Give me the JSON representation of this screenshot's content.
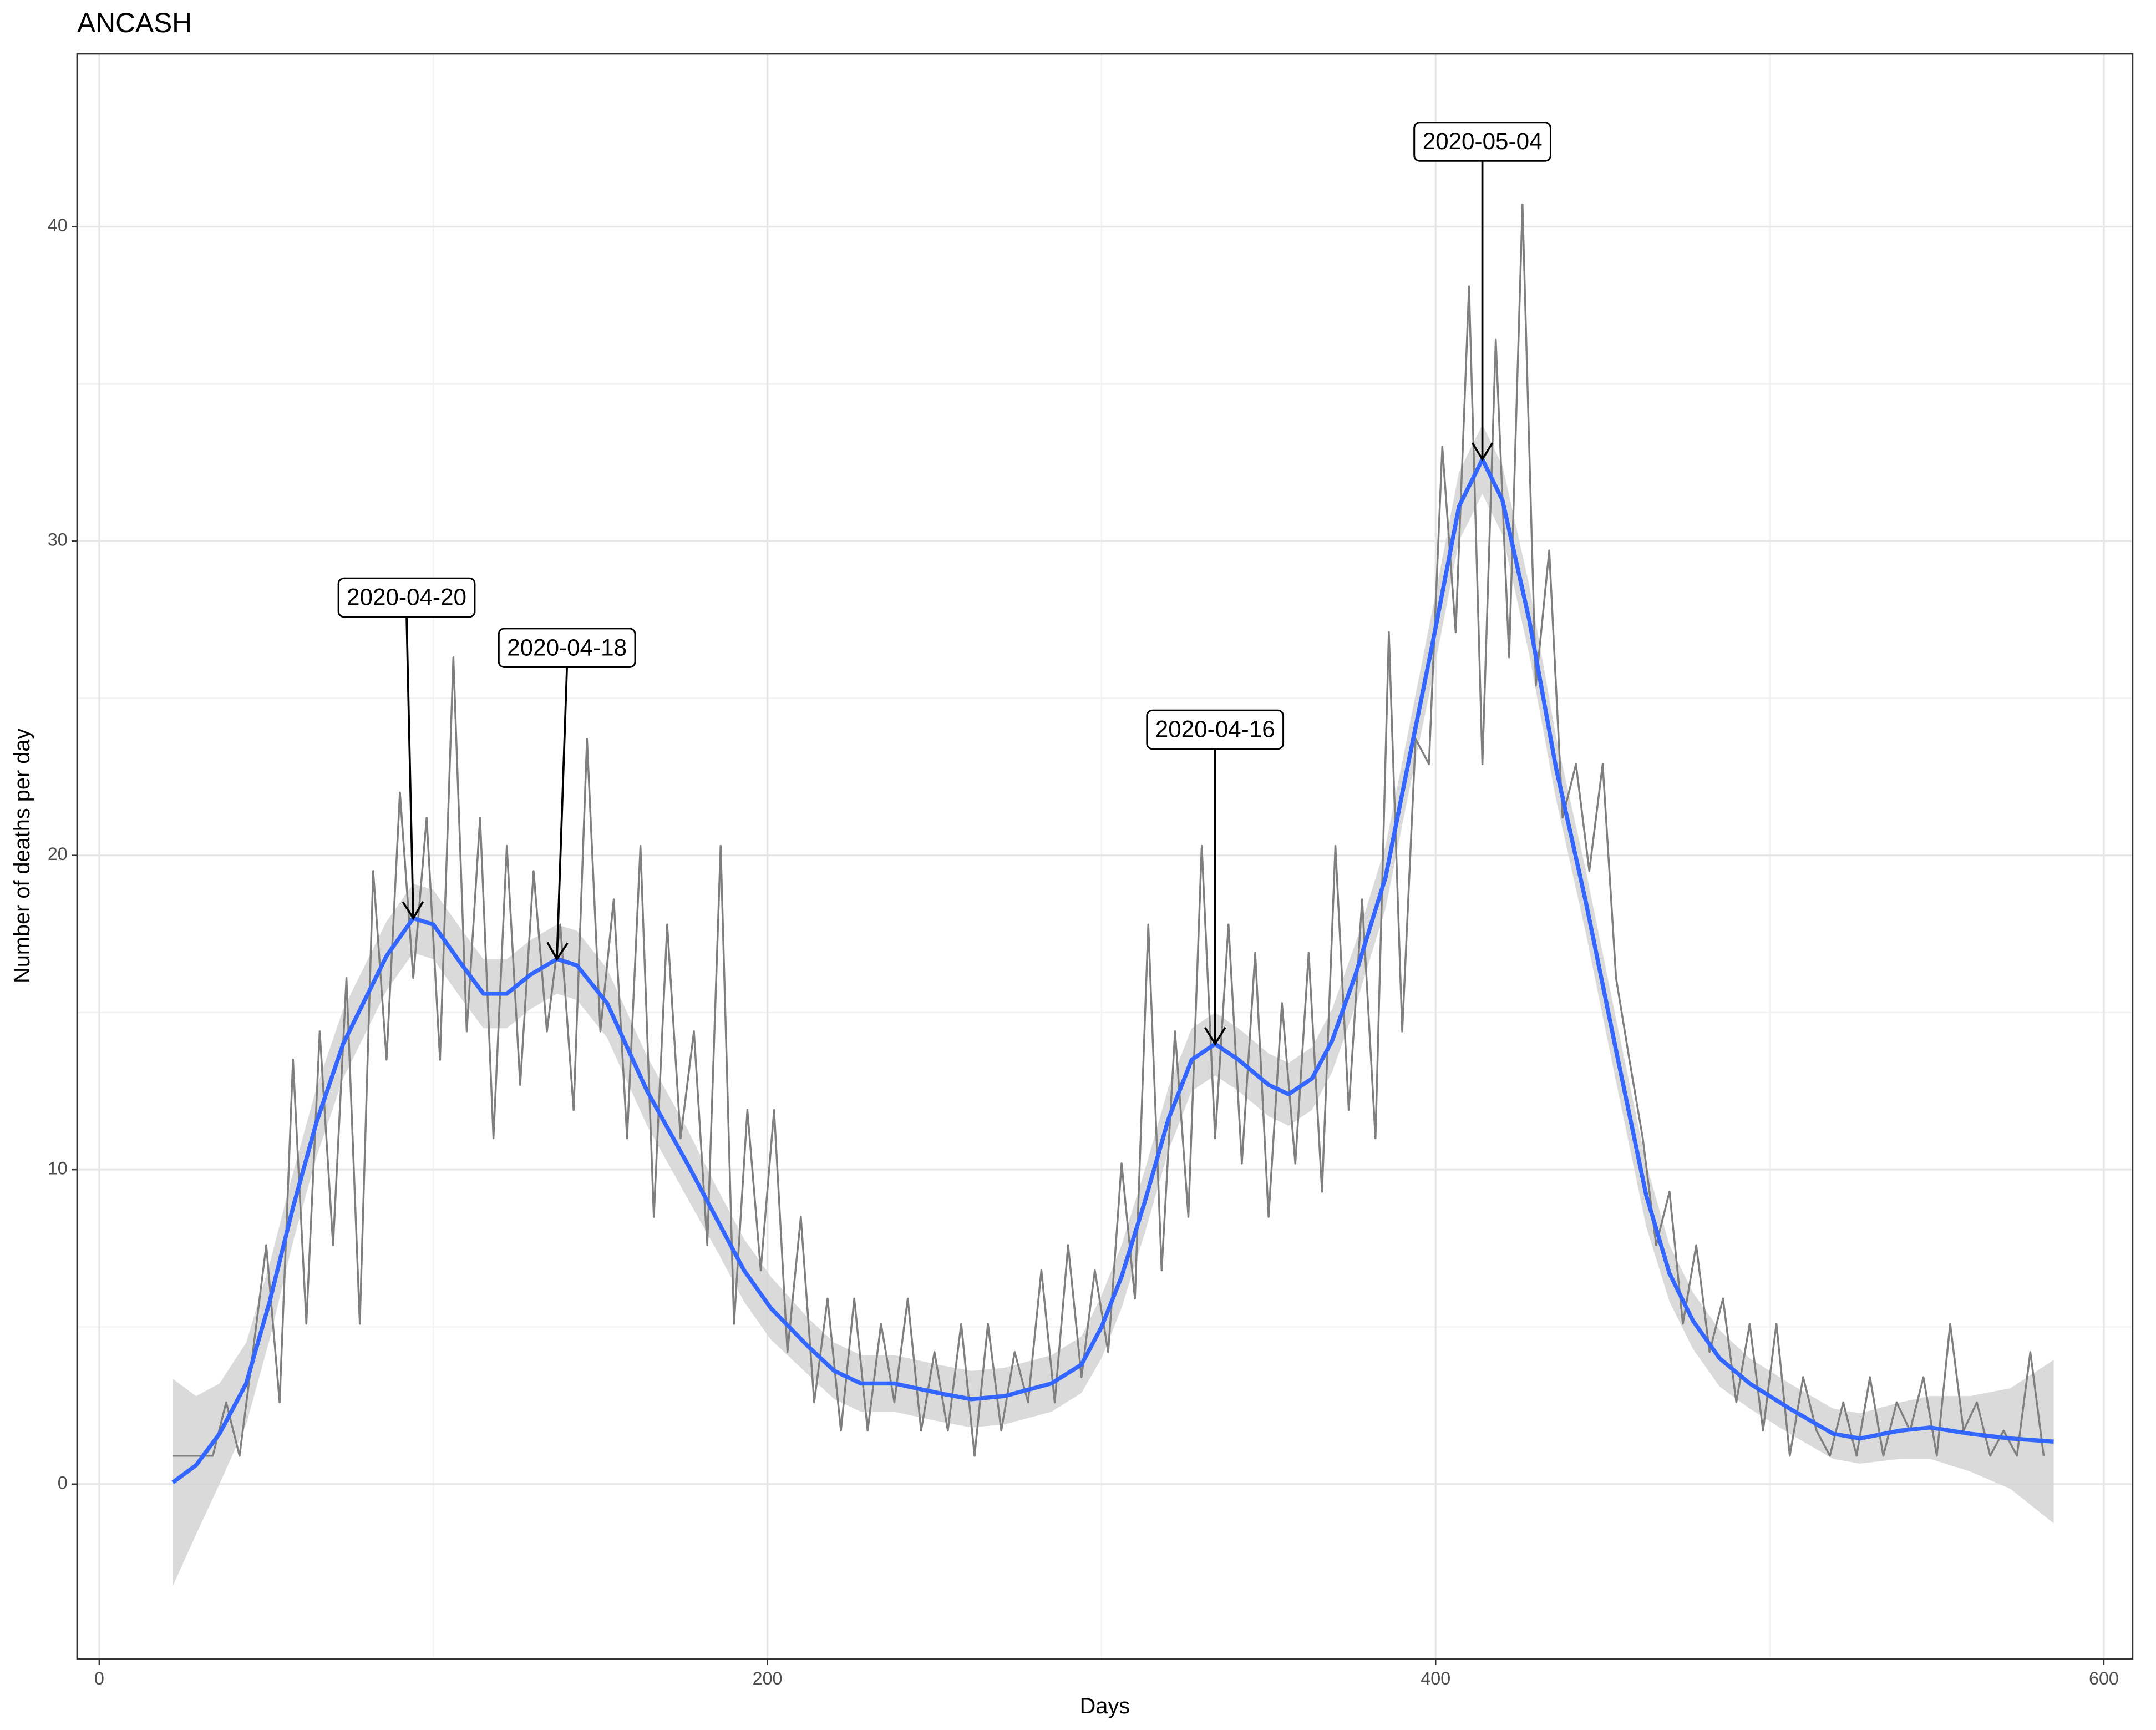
{
  "chart_data": {
    "type": "line",
    "title": "ANCASH",
    "x_label": "Days",
    "y_label": "Number of deaths per day",
    "xlim": [
      -6.6,
      608.6
    ],
    "ylim": [
      -5.57,
      45.5
    ],
    "xticks": [
      0,
      200,
      400,
      600
    ],
    "yticks": [
      0,
      10,
      20,
      30,
      40
    ],
    "x_minor_ticks": [
      100,
      300,
      500
    ],
    "y_minor_ticks": [
      5,
      15,
      25,
      35
    ],
    "grid": true,
    "series": [
      {
        "name": "daily",
        "color": "#7f7f7f",
        "x": [
          22,
          26,
          30,
          34,
          38,
          42,
          46,
          50,
          54,
          58,
          62,
          66,
          70,
          74,
          78,
          82,
          86,
          90,
          94,
          98,
          102,
          106,
          110,
          114,
          118,
          122,
          126,
          130,
          134,
          138,
          142,
          146,
          150,
          154,
          158,
          162,
          166,
          170,
          174,
          178,
          182,
          186,
          190,
          194,
          198,
          202,
          206,
          210,
          214,
          218,
          222,
          226,
          230,
          234,
          238,
          242,
          246,
          250,
          254,
          258,
          262,
          266,
          270,
          274,
          278,
          282,
          286,
          290,
          294,
          298,
          302,
          306,
          310,
          314,
          318,
          322,
          326,
          330,
          334,
          338,
          342,
          346,
          350,
          354,
          358,
          362,
          366,
          370,
          374,
          378,
          382,
          386,
          390,
          394,
          398,
          402,
          406,
          410,
          414,
          418,
          422,
          426,
          430,
          434,
          438,
          442,
          446,
          450,
          454,
          458,
          462,
          466,
          470,
          474,
          478,
          482,
          486,
          490,
          494,
          498,
          502,
          506,
          510,
          514,
          518,
          522,
          526,
          530,
          534,
          538,
          542,
          546,
          550,
          554,
          558,
          562,
          566,
          570,
          574,
          578,
          582
        ],
        "values": [
          0.9,
          0.9,
          0.9,
          0.9,
          2.6,
          0.9,
          4.2,
          7.6,
          2.6,
          13.5,
          5.1,
          14.4,
          7.6,
          16.1,
          5.1,
          19.5,
          13.5,
          22.0,
          16.1,
          21.2,
          13.5,
          26.3,
          14.4,
          21.2,
          11.0,
          20.3,
          12.7,
          19.5,
          14.4,
          17.8,
          11.9,
          23.7,
          14.4,
          18.6,
          11.0,
          20.3,
          8.5,
          17.8,
          11.0,
          14.4,
          7.6,
          20.3,
          5.1,
          11.9,
          6.8,
          11.9,
          4.2,
          8.5,
          2.6,
          5.9,
          1.7,
          5.9,
          1.7,
          5.1,
          2.6,
          5.9,
          1.7,
          4.2,
          1.7,
          5.1,
          0.9,
          5.1,
          1.7,
          4.2,
          2.6,
          6.8,
          2.6,
          7.6,
          3.4,
          6.8,
          4.2,
          10.2,
          5.9,
          17.8,
          6.8,
          14.4,
          8.5,
          20.3,
          11.0,
          17.8,
          10.2,
          16.9,
          8.5,
          15.3,
          10.2,
          16.9,
          9.3,
          20.3,
          11.9,
          18.6,
          11.0,
          27.1,
          14.4,
          23.7,
          22.9,
          33.0,
          27.1,
          38.1,
          22.9,
          36.4,
          26.3,
          40.7,
          25.4,
          29.7,
          21.2,
          22.9,
          19.5,
          22.9,
          16.1,
          13.5,
          11.0,
          7.6,
          9.3,
          5.1,
          7.6,
          4.2,
          5.9,
          2.6,
          5.1,
          1.7,
          5.1,
          0.9,
          3.4,
          1.7,
          0.9,
          2.6,
          0.9,
          3.4,
          0.9,
          2.6,
          1.7,
          3.4,
          0.9,
          5.1,
          1.7,
          2.6,
          0.9,
          1.7,
          0.9,
          4.2,
          0.9
        ]
      },
      {
        "name": "smooth",
        "color": "#3366ff",
        "band_color": "#d4d4d4",
        "x": [
          22,
          29,
          36,
          44,
          51,
          58,
          65,
          73,
          86,
          94,
          100,
          108,
          115,
          122,
          129,
          137,
          143,
          152,
          164,
          176,
          185,
          193,
          201,
          212,
          220,
          228,
          238,
          251,
          261,
          271,
          285,
          294,
          300,
          306,
          313,
          320,
          327,
          334,
          341,
          350,
          356,
          363,
          369,
          376,
          385,
          391,
          399,
          407,
          414,
          420,
          428,
          436,
          445,
          454,
          463,
          470,
          477,
          485,
          494,
          506,
          519,
          527,
          539,
          548,
          560,
          572,
          585
        ],
        "values": [
          0.05,
          0.6,
          1.6,
          3.2,
          5.8,
          8.8,
          11.5,
          14.0,
          16.8,
          18.0,
          17.8,
          16.6,
          15.6,
          15.6,
          16.2,
          16.7,
          16.5,
          15.3,
          12.5,
          10.2,
          8.4,
          6.8,
          5.6,
          4.4,
          3.6,
          3.2,
          3.2,
          2.9,
          2.7,
          2.8,
          3.2,
          3.8,
          5.0,
          6.6,
          9.0,
          11.6,
          13.5,
          14.0,
          13.5,
          12.7,
          12.4,
          12.9,
          14.1,
          16.2,
          19.3,
          22.5,
          26.7,
          31.1,
          32.6,
          31.3,
          27.5,
          22.8,
          18.5,
          13.8,
          9.2,
          6.7,
          5.2,
          4.0,
          3.2,
          2.4,
          1.6,
          1.45,
          1.7,
          1.8,
          1.6,
          1.45,
          1.35
        ],
        "lower": [
          -3.25,
          -1.6,
          0.0,
          1.9,
          4.6,
          7.7,
          10.4,
          12.9,
          15.7,
          16.9,
          16.7,
          15.5,
          14.5,
          14.5,
          15.1,
          15.6,
          15.4,
          14.2,
          11.4,
          9.1,
          7.4,
          5.8,
          4.6,
          3.5,
          2.7,
          2.3,
          2.3,
          2.0,
          1.8,
          1.9,
          2.3,
          2.9,
          4.0,
          5.6,
          8.0,
          10.6,
          12.5,
          13.0,
          12.5,
          11.7,
          11.4,
          11.9,
          13.1,
          15.2,
          18.3,
          21.5,
          25.6,
          30.0,
          31.5,
          30.2,
          26.4,
          21.8,
          17.5,
          12.8,
          8.2,
          5.8,
          4.3,
          3.1,
          2.4,
          1.6,
          0.8,
          0.65,
          0.8,
          0.8,
          0.4,
          -0.15,
          -1.25
        ],
        "upper": [
          3.35,
          2.8,
          3.2,
          4.5,
          7.0,
          9.9,
          12.6,
          15.1,
          17.9,
          19.1,
          18.9,
          17.7,
          16.7,
          16.7,
          17.3,
          17.8,
          17.6,
          16.4,
          13.6,
          11.3,
          9.4,
          7.8,
          6.6,
          5.3,
          4.5,
          4.1,
          4.1,
          3.8,
          3.6,
          3.7,
          4.1,
          4.7,
          6.0,
          7.6,
          10.0,
          12.6,
          14.5,
          15.0,
          14.5,
          13.7,
          13.4,
          13.9,
          15.1,
          17.2,
          20.3,
          23.5,
          27.8,
          32.2,
          33.7,
          32.4,
          28.6,
          23.8,
          19.5,
          14.8,
          10.2,
          7.6,
          6.1,
          4.9,
          4.0,
          3.2,
          2.4,
          2.25,
          2.6,
          2.8,
          2.8,
          3.05,
          3.95
        ]
      }
    ],
    "annotations": [
      {
        "label": "2020-04-20",
        "x": 94,
        "y": 18.0,
        "text_x": 92,
        "text_y": 28.2
      },
      {
        "label": "2020-04-18",
        "x": 137,
        "y": 16.7,
        "text_x": 140,
        "text_y": 26.6
      },
      {
        "label": "2020-04-16",
        "x": 334,
        "y": 14.0,
        "text_x": 334,
        "text_y": 24.0
      },
      {
        "label": "2020-05-04",
        "x": 414,
        "y": 32.6,
        "text_x": 414,
        "text_y": 42.7
      }
    ]
  }
}
